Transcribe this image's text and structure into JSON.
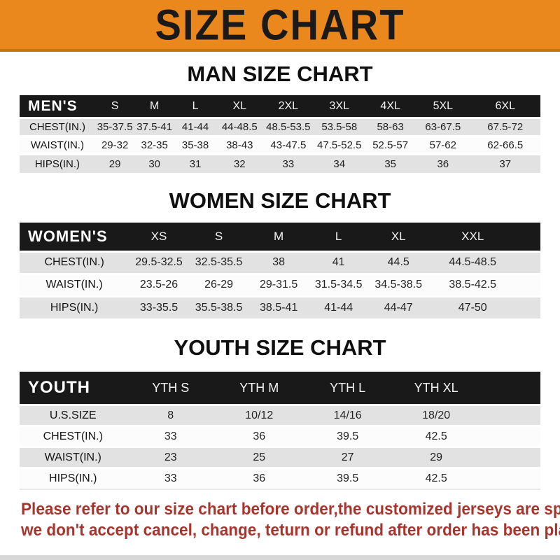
{
  "banner": {
    "title": "SIZE CHART"
  },
  "colors": {
    "banner_bg": "#EA871D",
    "banner_border": "#C9730F",
    "header_bar": "#191919",
    "row_gray": "#E2E2E2",
    "row_white": "#FCFCFC",
    "notice_red": "#A8342E",
    "bottom_strip": "#D8D8D8"
  },
  "sections": {
    "men": {
      "title": "MAN SIZE CHART",
      "table": {
        "corner_label": "MEN'S",
        "columns": [
          "S",
          "M",
          "L",
          "XL",
          "2XL",
          "3XL",
          "4XL",
          "5XL",
          "6XL"
        ],
        "rows": [
          {
            "label": "CHEST(IN.)",
            "values": [
              "35-37.5",
              "37.5-41",
              "41-44",
              "44-48.5",
              "48.5-53.5",
              "53.5-58",
              "58-63",
              "63-67.5",
              "67.5-72"
            ]
          },
          {
            "label": "WAIST(IN.)",
            "values": [
              "29-32",
              "32-35",
              "35-38",
              "38-43",
              "43-47.5",
              "47.5-52.5",
              "52.5-57",
              "57-62",
              "62-66.5"
            ]
          },
          {
            "label": "HIPS(IN.)",
            "values": [
              "29",
              "30",
              "31",
              "32",
              "33",
              "34",
              "35",
              "36",
              "37"
            ]
          }
        ]
      }
    },
    "women": {
      "title": "WOMEN SIZE CHART",
      "table": {
        "corner_label": "WOMEN'S",
        "columns": [
          "XS",
          "S",
          "M",
          "L",
          "XL",
          "XXL"
        ],
        "rows": [
          {
            "label": "CHEST(IN.)",
            "values": [
              "29.5-32.5",
              "32.5-35.5",
              "38",
              "41",
              "44.5",
              "44.5-48.5"
            ]
          },
          {
            "label": "WAIST(IN.)",
            "values": [
              "23.5-26",
              "26-29",
              "29-31.5",
              "31.5-34.5",
              "34.5-38.5",
              "38.5-42.5"
            ]
          },
          {
            "label": "HIPS(IN.)",
            "values": [
              "33-35.5",
              "35.5-38.5",
              "38.5-41",
              "41-44",
              "44-47",
              "47-50"
            ]
          }
        ]
      }
    },
    "youth": {
      "title": "YOUTH SIZE CHART",
      "table": {
        "corner_label": "YOUTH",
        "columns": [
          "YTH S",
          "YTH M",
          "YTH L",
          "YTH XL"
        ],
        "rows": [
          {
            "label": "U.S.SIZE",
            "values": [
              "8",
              "10/12",
              "14/16",
              "18/20"
            ]
          },
          {
            "label": "CHEST(IN.)",
            "values": [
              "33",
              "36",
              "39.5",
              "42.5"
            ]
          },
          {
            "label": "WAIST(IN.)",
            "values": [
              "23",
              "25",
              "27",
              "29"
            ]
          },
          {
            "label": "HIPS(IN.)",
            "values": [
              "33",
              "36",
              "39.5",
              "42.5"
            ]
          }
        ]
      }
    }
  },
  "notice": {
    "line1": "Please refer to our size chart before order,the customized jerseys are special products,",
    "line2": "we don't accept cancel, change, teturn or refund after order has been placed!"
  }
}
